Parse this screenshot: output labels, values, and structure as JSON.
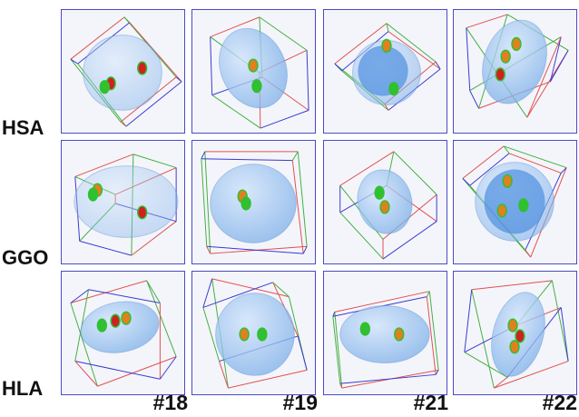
{
  "rows": [
    "HSA",
    "GGO",
    "HLA"
  ],
  "columns": [
    "#18",
    "#19",
    "#21",
    "#22"
  ],
  "colors": {
    "frame": "#4a4ac8",
    "volume": "#7aaee8",
    "box_red": "#e05050",
    "box_green": "#40b040",
    "box_blue": "#3a3ad0",
    "spot_red": "#d02020",
    "spot_green": "#30c030",
    "spot_orange": "#e08020"
  }
}
